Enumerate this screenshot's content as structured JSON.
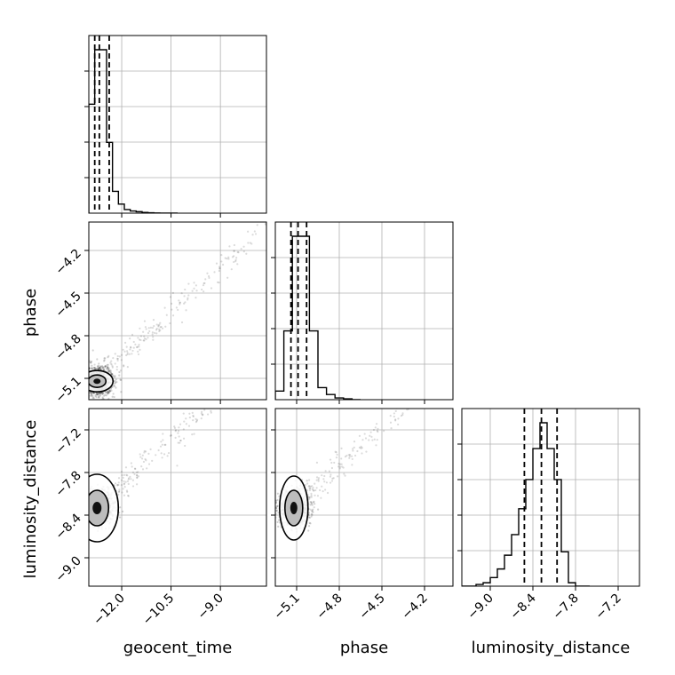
{
  "chart_data": {
    "type": "corner",
    "parameters": [
      "geocent_time",
      "phase",
      "luminosity_distance"
    ],
    "axis_labels": {
      "geocent_time": "geocent_time",
      "phase": "phase",
      "luminosity_distance": "luminosity_distance"
    },
    "ranges": {
      "geocent_time": [
        -13.0,
        -7.6
      ],
      "phase": [
        -5.25,
        -4.0
      ],
      "luminosity_distance": [
        -9.4,
        -6.9
      ]
    },
    "ticks": {
      "geocent_time": {
        "values": [
          -12.0,
          -10.5,
          -9.0
        ],
        "labels": [
          "−12.0",
          "−10.5",
          "−9.0"
        ]
      },
      "phase": {
        "values": [
          -5.1,
          -4.8,
          -4.5,
          -4.2
        ],
        "labels": [
          "−5.1",
          "−4.8",
          "−4.5",
          "−4.2"
        ]
      },
      "luminosity_distance": {
        "values": [
          -9.0,
          -8.4,
          -7.8,
          -7.2
        ],
        "labels": [
          "−9.0",
          "−8.4",
          "−7.8",
          "−7.2"
        ]
      }
    },
    "histograms": {
      "geocent_time": {
        "bin_edges": [
          -13.0,
          -12.82,
          -12.64,
          -12.46,
          -12.28,
          -12.1,
          -11.92,
          -11.74,
          -11.56,
          -11.38,
          -11.2,
          -11.02,
          -10.84,
          -10.66,
          -10.48,
          -10.3
        ],
        "counts": [
          0.6,
          0.9,
          0.9,
          0.39,
          0.12,
          0.05,
          0.02,
          0.012,
          0.008,
          0.004,
          0.002,
          0.001,
          0.0,
          0.0,
          0.0
        ],
        "quantiles": [
          -12.82,
          -12.68,
          -12.38
        ]
      },
      "phase": {
        "bin_edges": [
          -5.25,
          -5.19,
          -5.13,
          -5.07,
          -5.01,
          -4.95,
          -4.89,
          -4.83,
          -4.77,
          -4.71,
          -4.65
        ],
        "counts": [
          0.05,
          0.4,
          0.95,
          0.95,
          0.4,
          0.07,
          0.03,
          0.01,
          0.005,
          0.0
        ],
        "quantiles": [
          -5.14,
          -5.09,
          -5.03
        ]
      },
      "luminosity_distance": {
        "bin_edges": [
          -9.4,
          -9.3,
          -9.2,
          -9.1,
          -9.0,
          -8.9,
          -8.8,
          -8.7,
          -8.6,
          -8.5,
          -8.4,
          -8.3,
          -8.2,
          -8.1,
          -8.0,
          -7.9,
          -7.8,
          -7.7,
          -7.6
        ],
        "counts": [
          0.0,
          0.0,
          0.01,
          0.02,
          0.05,
          0.1,
          0.18,
          0.3,
          0.45,
          0.62,
          0.8,
          0.95,
          0.8,
          0.62,
          0.2,
          0.02,
          0.0,
          0.0
        ],
        "quantiles": [
          -8.52,
          -8.28,
          -8.06
        ]
      }
    },
    "scatter_mode": {
      "geocent_time": -12.75,
      "phase": -5.12,
      "luminosity_distance": -8.3
    },
    "grid": true,
    "colors": {
      "points": "#000000",
      "contour_line": "#000000",
      "contour_fill": "#bdbdbd",
      "grid": "#b0b0b0"
    }
  }
}
